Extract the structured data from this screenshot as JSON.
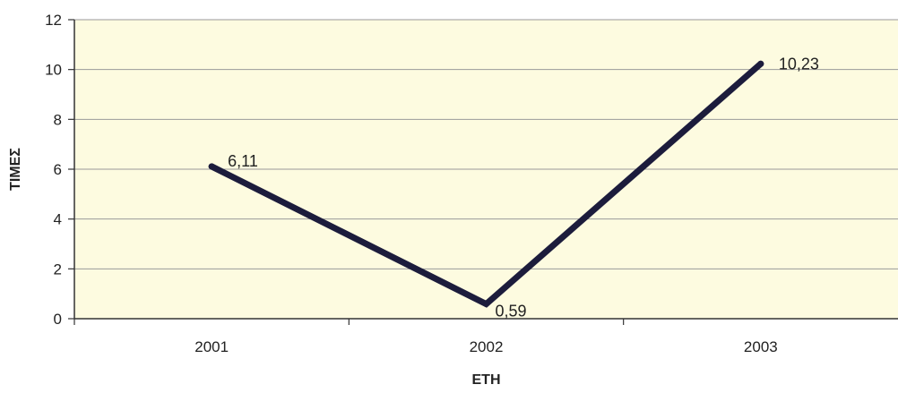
{
  "chart_data": {
    "type": "line",
    "title": "",
    "xlabel": "ΕΤΗ",
    "ylabel": "ΤΙΜΕΣ",
    "categories": [
      "2001",
      "2002",
      "2003"
    ],
    "series": [
      {
        "values": [
          6.11,
          0.59,
          10.23
        ],
        "data_labels": [
          "6,11",
          "0,59",
          "10,23"
        ],
        "color": "#1c1c3c"
      }
    ],
    "ylim": [
      0,
      12
    ],
    "yticks": [
      0,
      2,
      4,
      6,
      8,
      10,
      12
    ],
    "grid": true,
    "legend": "none",
    "plot_background": "#fdfbe0",
    "grid_color": "#9a9a9a"
  }
}
